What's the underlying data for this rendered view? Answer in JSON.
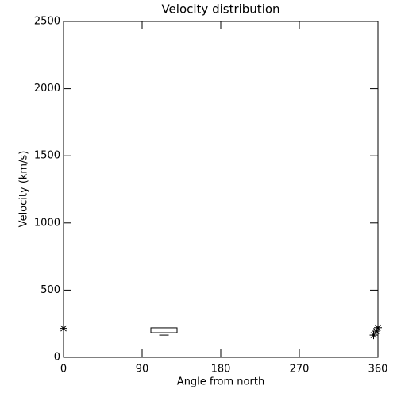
{
  "chart_data": {
    "type": "scatter-box",
    "title": "Velocity distribution",
    "x_label": "Angle from north",
    "y_label": "Velocity (km/s)",
    "xlim": [
      0,
      360
    ],
    "xticks": [
      0,
      90,
      180,
      270,
      360
    ],
    "ylim": [
      0,
      2500
    ],
    "yticks": [
      0,
      500,
      1000,
      1500,
      2000,
      2500
    ],
    "points": {
      "x": [
        0,
        355,
        358,
        360
      ],
      "y": [
        215,
        165,
        195,
        220
      ]
    },
    "box": {
      "x_range": [
        100,
        130
      ],
      "low": 165,
      "q1": 183,
      "q3": 219
    },
    "color": "#000000"
  }
}
